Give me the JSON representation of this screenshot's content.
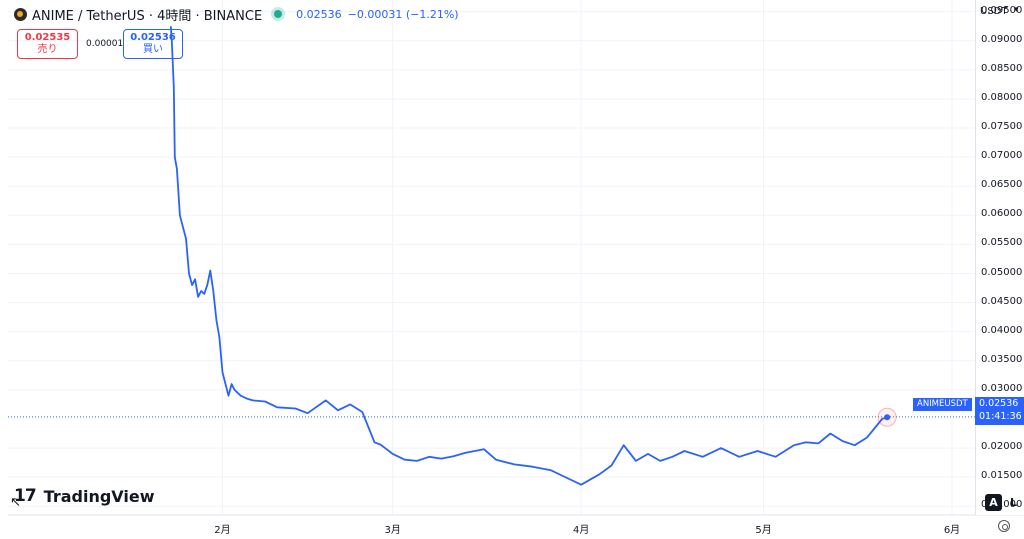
{
  "header": {
    "symbol": "ANIME / TetherUS · 4時間 · BINANCE",
    "price": "0.02536",
    "change": "−0.00031 (−1.21%)"
  },
  "trade": {
    "sell_price": "0.02535",
    "sell_label": "売り",
    "spread": "0.00001",
    "buy_price": "0.02536",
    "buy_label": "買い"
  },
  "axis": {
    "currency": "USDT",
    "y_ticks": [
      "0.09500",
      "0.09000",
      "0.08500",
      "0.08000",
      "0.07500",
      "0.07000",
      "0.06500",
      "0.06000",
      "0.05500",
      "0.05000",
      "0.04500",
      "0.04000",
      "0.03500",
      "0.03000",
      "0.02000",
      "0.01500",
      "0.01000"
    ],
    "x_ticks": [
      "2月",
      "3月",
      "4月",
      "5月",
      "6月"
    ]
  },
  "last_price_label": {
    "symbol": "ANIMEUSDT",
    "price": "0.02536",
    "countdown": "01:41:36"
  },
  "branding": "TradingView",
  "buttons": {
    "auto": "A",
    "log": "L"
  },
  "colors": {
    "line": "#2962ff",
    "sell": "#f23645",
    "buy": "#2962ff",
    "live": "#22ab94"
  },
  "chart_data": {
    "type": "line",
    "series": [
      {
        "name": "ANIMEUSDT",
        "x": [
          "2025-01-23T12:00",
          "2025-01-23T16:00",
          "2025-01-24T00:00",
          "2025-01-24T04:00",
          "2025-01-24T12:00",
          "2025-01-25T00:00",
          "2025-01-25T12:00",
          "2025-01-26T00:00",
          "2025-01-26T12:00",
          "2025-01-27T00:00",
          "2025-01-27T12:00",
          "2025-01-28T00:00",
          "2025-01-28T12:00",
          "2025-01-29T00:00",
          "2025-01-29T12:00",
          "2025-01-30T00:00",
          "2025-01-30T12:00",
          "2025-01-31T00:00",
          "2025-01-31T12:00",
          "2025-02-01T00:00",
          "2025-02-02T00:00",
          "2025-02-02T12:00",
          "2025-02-03T00:00",
          "2025-02-03T12:00",
          "2025-02-04T00:00",
          "2025-02-05T00:00",
          "2025-02-06T00:00",
          "2025-02-08T00:00",
          "2025-02-10T00:00",
          "2025-02-13T00:00",
          "2025-02-15T00:00",
          "2025-02-18T00:00",
          "2025-02-20T00:00",
          "2025-02-22T00:00",
          "2025-02-24T00:00",
          "2025-02-26T00:00",
          "2025-02-27T00:00",
          "2025-02-28T00:00",
          "2025-03-01T00:00",
          "2025-03-03T00:00",
          "2025-03-05T00:00",
          "2025-03-07T00:00",
          "2025-03-09T00:00",
          "2025-03-11T00:00",
          "2025-03-13T00:00",
          "2025-03-16T00:00",
          "2025-03-18T00:00",
          "2025-03-21T00:00",
          "2025-03-24T00:00",
          "2025-03-27T00:00",
          "2025-03-29T00:00",
          "2025-04-01T00:00",
          "2025-04-04T00:00",
          "2025-04-06T00:00",
          "2025-04-08T00:00",
          "2025-04-10T00:00",
          "2025-04-12T00:00",
          "2025-04-14T00:00",
          "2025-04-16T00:00",
          "2025-04-18T00:00",
          "2025-04-21T00:00",
          "2025-04-24T00:00",
          "2025-04-27T00:00",
          "2025-04-30T00:00",
          "2025-05-03T00:00",
          "2025-05-06T00:00",
          "2025-05-08T00:00",
          "2025-05-10T00:00",
          "2025-05-12T00:00",
          "2025-05-14T00:00",
          "2025-05-16T00:00",
          "2025-05-18T00:00",
          "2025-05-19T12:00",
          "2025-05-20T12:00",
          "2025-05-21T08:00"
        ],
        "values": [
          0.0925,
          0.09,
          0.082,
          0.07,
          0.068,
          0.06,
          0.058,
          0.056,
          0.05,
          0.048,
          0.049,
          0.046,
          0.047,
          0.0465,
          0.048,
          0.0505,
          0.047,
          0.042,
          0.039,
          0.033,
          0.029,
          0.031,
          0.03,
          0.0295,
          0.029,
          0.0285,
          0.0282,
          0.028,
          0.027,
          0.0268,
          0.026,
          0.0282,
          0.0265,
          0.0275,
          0.0262,
          0.021,
          0.0206,
          0.0198,
          0.019,
          0.018,
          0.0178,
          0.0185,
          0.0182,
          0.0186,
          0.0192,
          0.0198,
          0.018,
          0.0172,
          0.0168,
          0.0162,
          0.0152,
          0.0137,
          0.0155,
          0.017,
          0.0205,
          0.0178,
          0.019,
          0.0178,
          0.0185,
          0.0195,
          0.0185,
          0.02,
          0.0185,
          0.0195,
          0.0185,
          0.0205,
          0.021,
          0.0208,
          0.0225,
          0.0212,
          0.0205,
          0.0218,
          0.0237,
          0.025,
          0.0253
        ]
      }
    ],
    "y_unit": "USDT",
    "ylim": [
      0.0085,
      0.097
    ],
    "last_price": 0.02536,
    "grid": true
  }
}
